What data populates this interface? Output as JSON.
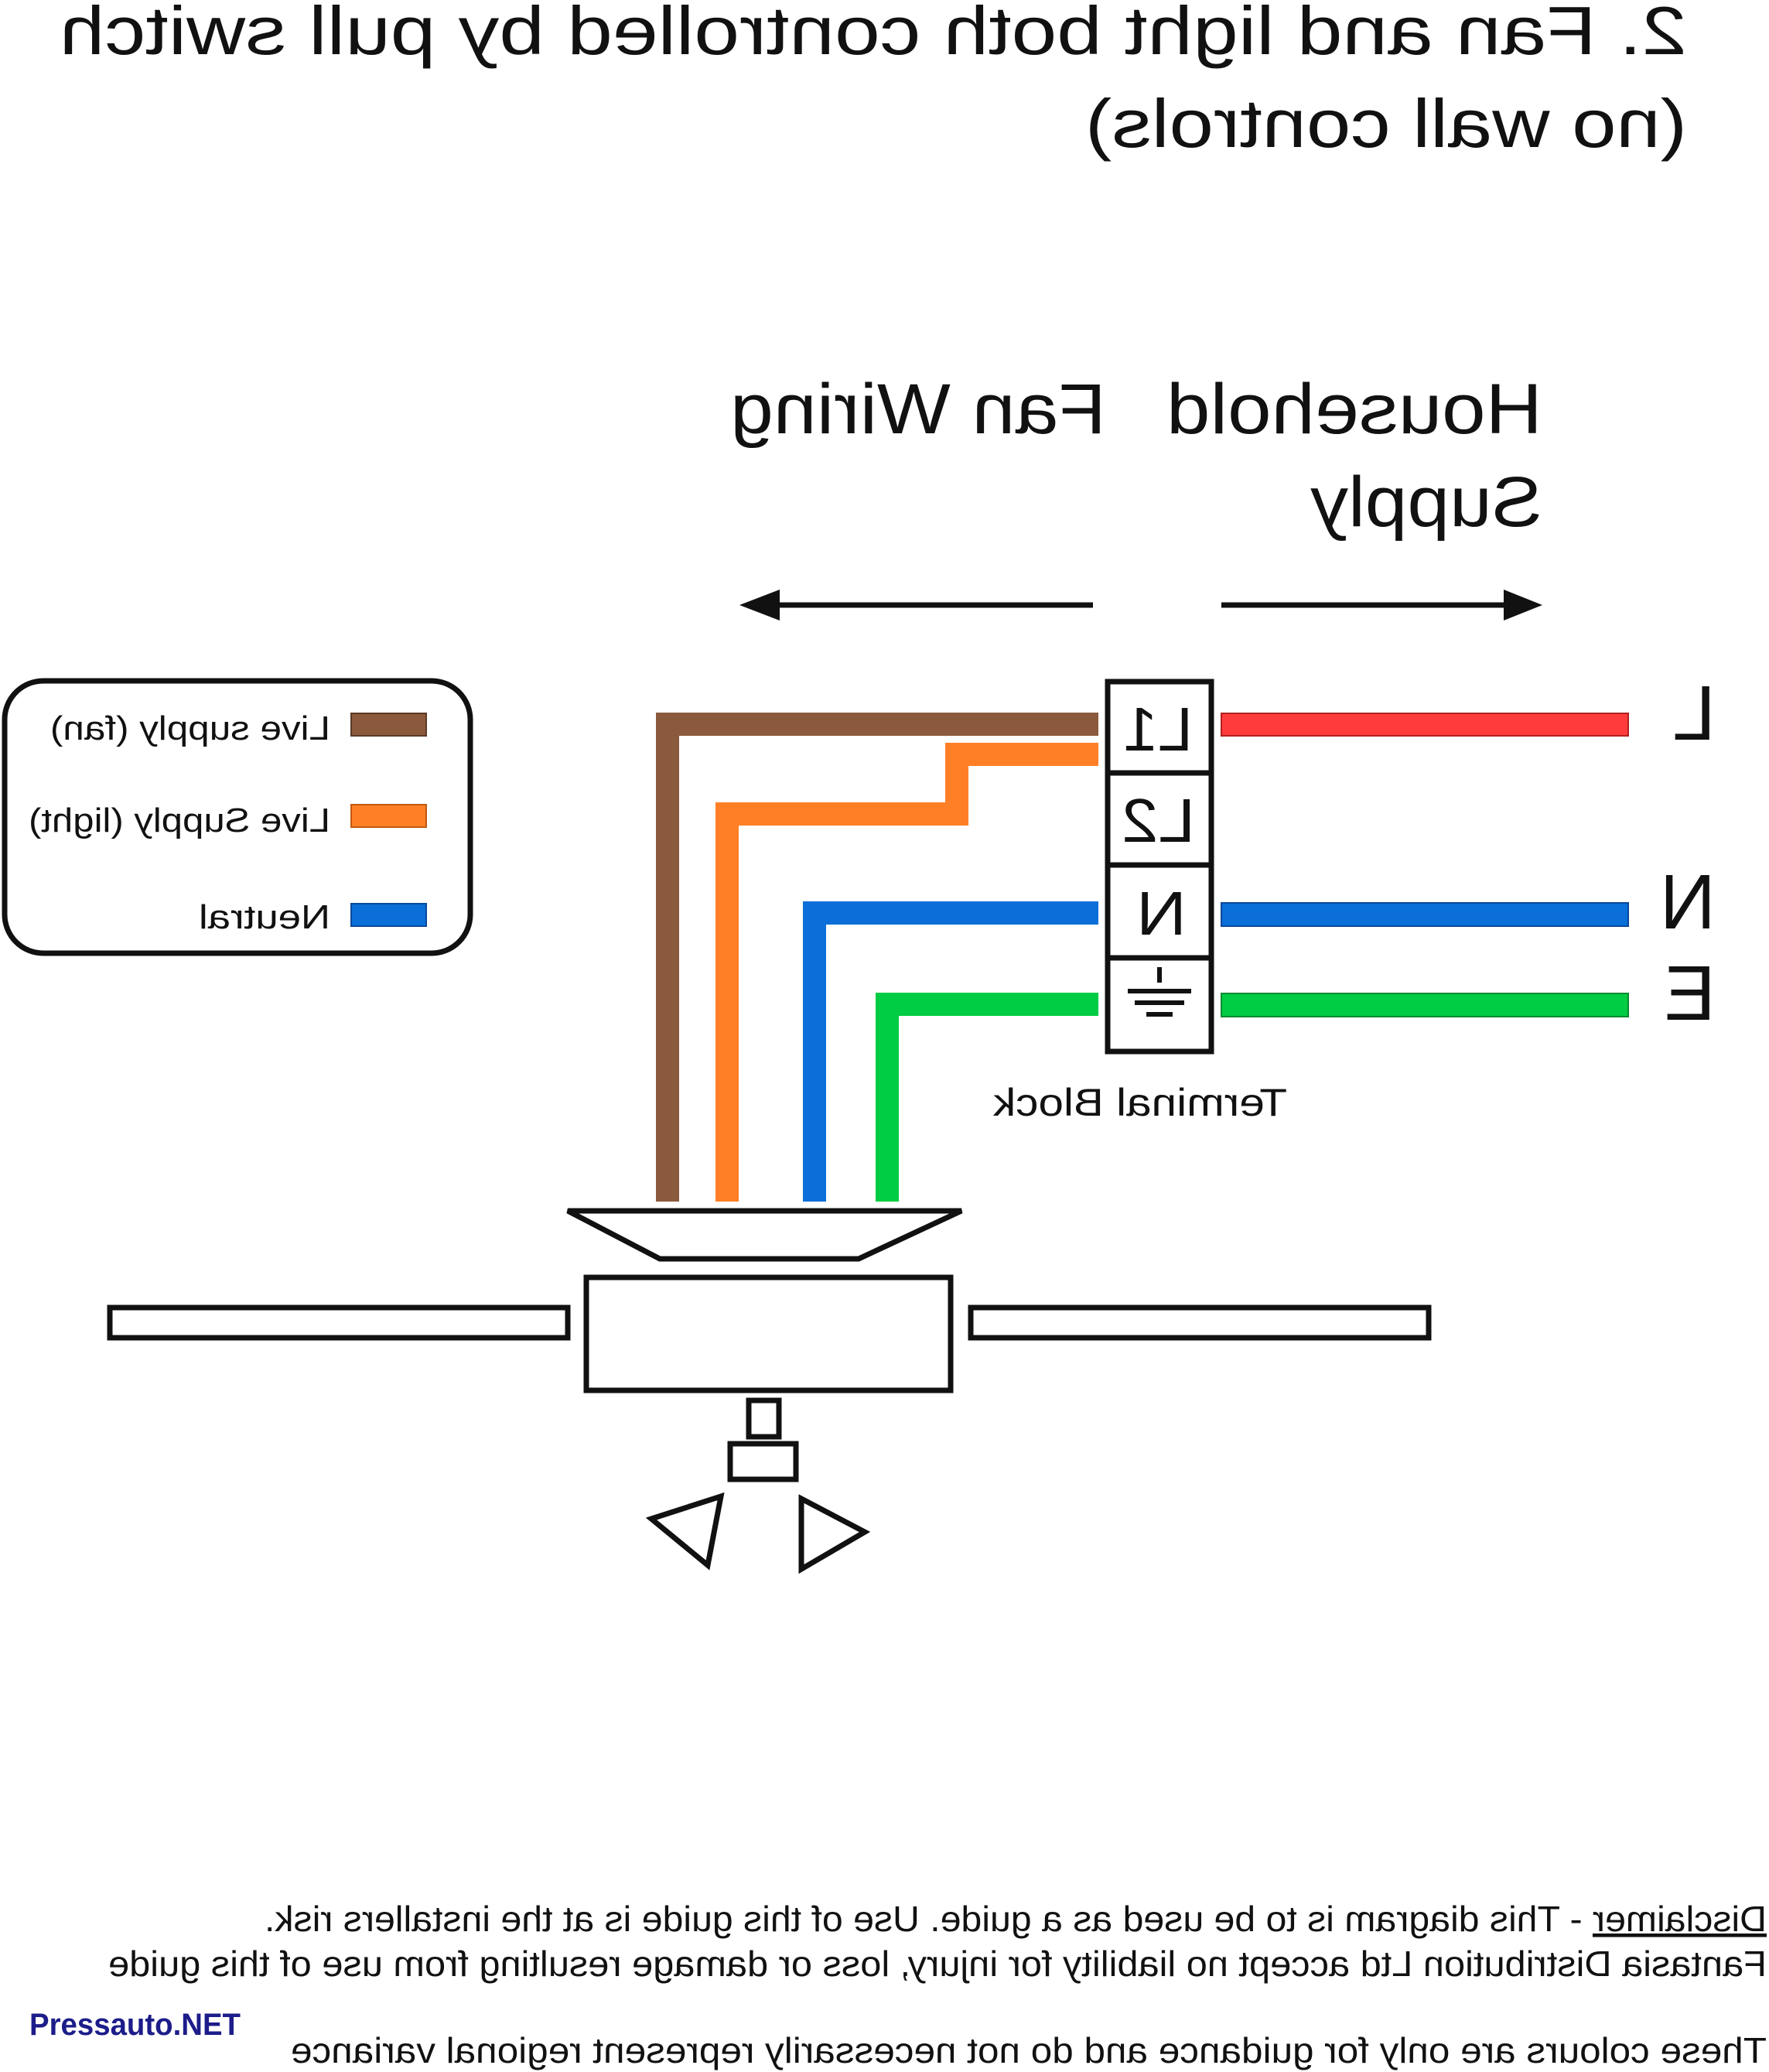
{
  "title": {
    "line1": "2. Fan and light both controlled by pull switch",
    "line2": "(no wall controls)"
  },
  "directions": {
    "fan_wiring": "Fan Wiring",
    "household_line1": "Household",
    "household_line2": "Supply"
  },
  "legend": {
    "items": [
      {
        "label": "Live supply (fan)",
        "color": "#8B5A3C"
      },
      {
        "label": "Live Supply (light)",
        "color": "#FF7F27"
      },
      {
        "label": "Neutral",
        "color": "#0A6FD8"
      }
    ]
  },
  "terminal_block": {
    "label": "Terminal Block",
    "terminals": [
      "L1",
      "L2",
      "N",
      "earth-symbol-icon"
    ]
  },
  "supply_labels": [
    "L",
    "N",
    "E"
  ],
  "wire_colors": {
    "live_fan": "#8B5A3C",
    "live_light": "#FF7F27",
    "neutral": "#0A6FD8",
    "earth": "#00CC44",
    "supply_live": "#FF3B3B"
  },
  "footer": {
    "disclaimer_heading": "Disclaimer",
    "disclaimer_rest": " - This diagram is to be used as a guide.  Use of this guide is at the installers risk.",
    "liability": "Fantasia Distribution Ltd accept no liability for injury, loss or damage resulting from use of this guide",
    "colours_note": "These colours are only for guidance and do not necessarily represent regional variance"
  },
  "watermark": "Pressauto.NET"
}
